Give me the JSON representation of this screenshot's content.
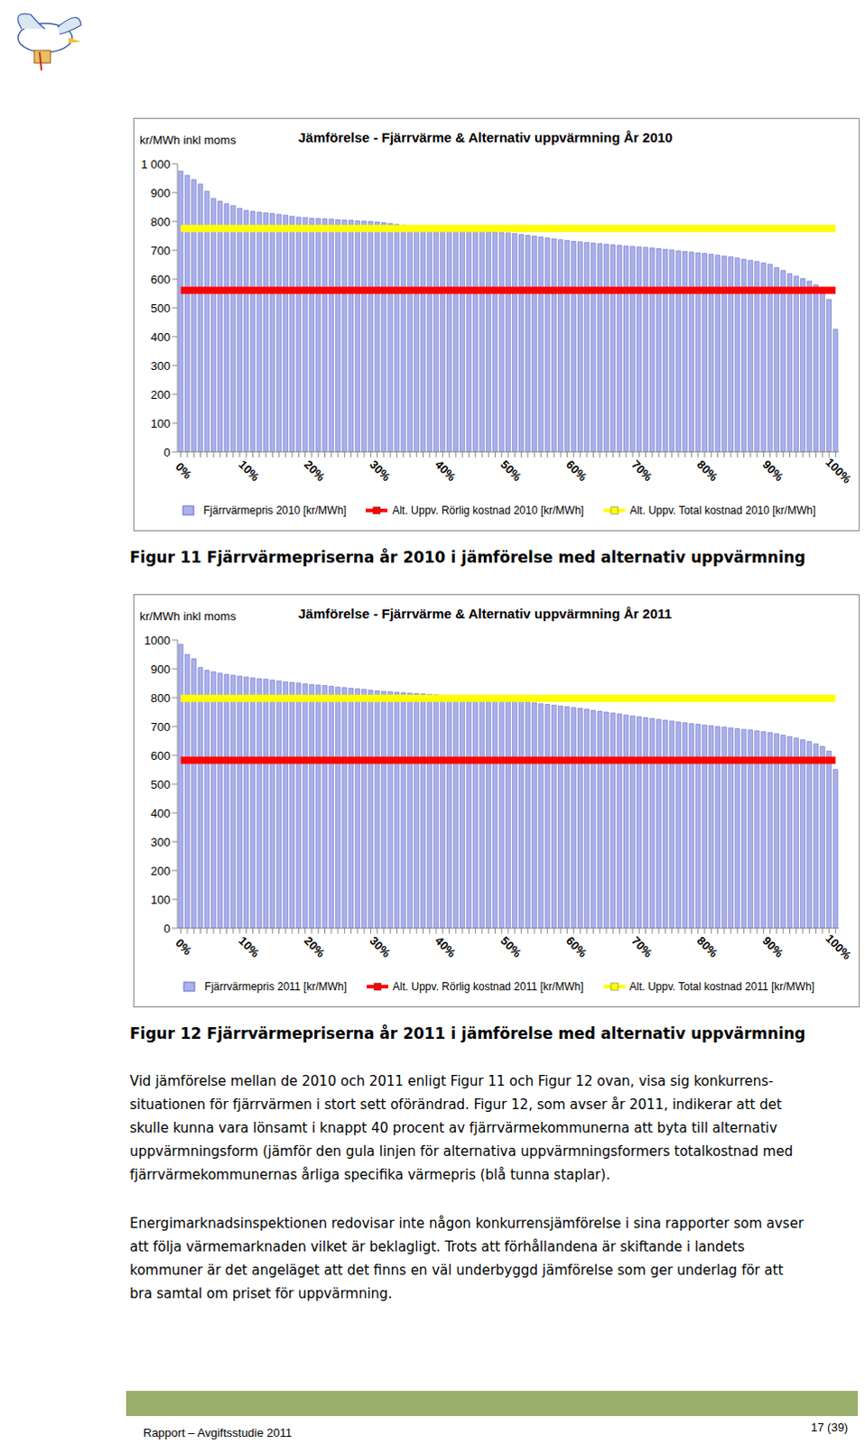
{
  "chart_data": [
    {
      "type": "bar",
      "title": "Jämförelse - Fjärrvärme & Alternativ uppvärmning År 2010",
      "ylabel": "kr/MWh inkl moms",
      "categories": [
        "0%",
        null,
        null,
        null,
        null,
        null,
        null,
        null,
        null,
        null,
        "10%",
        null,
        null,
        null,
        null,
        null,
        null,
        null,
        null,
        null,
        "20%",
        null,
        null,
        null,
        null,
        null,
        null,
        null,
        null,
        null,
        "30%",
        null,
        null,
        null,
        null,
        null,
        null,
        null,
        null,
        null,
        "40%",
        null,
        null,
        null,
        null,
        null,
        null,
        null,
        null,
        null,
        "50%",
        null,
        null,
        null,
        null,
        null,
        null,
        null,
        null,
        null,
        "60%",
        null,
        null,
        null,
        null,
        null,
        null,
        null,
        null,
        null,
        "70%",
        null,
        null,
        null,
        null,
        null,
        null,
        null,
        null,
        null,
        "80%",
        null,
        null,
        null,
        null,
        null,
        null,
        null,
        null,
        null,
        "90%",
        null,
        null,
        null,
        null,
        null,
        null,
        null,
        null,
        null,
        "100%"
      ],
      "series": [
        {
          "name": "Fjärrvärmepris 2010 [kr/MWh]",
          "type": "bar",
          "color": "#aab0ea",
          "values": [
            975,
            960,
            945,
            930,
            905,
            880,
            870,
            862,
            855,
            845,
            838,
            835,
            832,
            830,
            828,
            825,
            822,
            818,
            815,
            813,
            811,
            810,
            809,
            808,
            806,
            805,
            804,
            802,
            801,
            800,
            798,
            796,
            793,
            790,
            787,
            785,
            782,
            779,
            777,
            775,
            772,
            771,
            770,
            769,
            768,
            766,
            765,
            764,
            763,
            762,
            760,
            758,
            755,
            752,
            749,
            746,
            743,
            740,
            737,
            734,
            731,
            729,
            727,
            725,
            723,
            721,
            719,
            717,
            715,
            713,
            712,
            710,
            708,
            706,
            703,
            701,
            698,
            696,
            694,
            691,
            689,
            686,
            683,
            680,
            677,
            673,
            669,
            665,
            661,
            656,
            651,
            640,
            630,
            619,
            610,
            602,
            593,
            580,
            561,
            529,
            426
          ]
        },
        {
          "name": "Alt. Uppv. Rörlig kostnad 2010 [kr/MWh]",
          "type": "line",
          "color": "#ff0000",
          "values": [
            561,
            561,
            561,
            561,
            561,
            561,
            561,
            561,
            561,
            561,
            561,
            561,
            561,
            561,
            561,
            561,
            561,
            561,
            561,
            561,
            561,
            561,
            561,
            561,
            561,
            561,
            561,
            561,
            561,
            561,
            561,
            561,
            561,
            561,
            561,
            561,
            561,
            561,
            561,
            561,
            561,
            561,
            561,
            561,
            561,
            561,
            561,
            561,
            561,
            561,
            561,
            561,
            561,
            561,
            561,
            561,
            561,
            561,
            561,
            561,
            561,
            561,
            561,
            561,
            561,
            561,
            561,
            561,
            561,
            561,
            561,
            561,
            561,
            561,
            561,
            561,
            561,
            561,
            561,
            561,
            561,
            561,
            561,
            561,
            561,
            561,
            561,
            561,
            561,
            561,
            561,
            561,
            561,
            561,
            561,
            561,
            561,
            561,
            561,
            561,
            561
          ]
        },
        {
          "name": "Alt. Uppv. Total kostnad 2010 [kr/MWh]",
          "type": "line",
          "color": "#ffff00",
          "values": [
            776,
            776,
            776,
            776,
            776,
            776,
            776,
            776,
            776,
            776,
            776,
            776,
            776,
            776,
            776,
            776,
            776,
            776,
            776,
            776,
            776,
            776,
            776,
            776,
            776,
            776,
            776,
            776,
            776,
            776,
            776,
            776,
            776,
            776,
            776,
            776,
            776,
            776,
            776,
            776,
            776,
            776,
            776,
            776,
            776,
            776,
            776,
            776,
            776,
            776,
            776,
            776,
            776,
            776,
            776,
            776,
            776,
            776,
            776,
            776,
            776,
            776,
            776,
            776,
            776,
            776,
            776,
            776,
            776,
            776,
            776,
            776,
            776,
            776,
            776,
            776,
            776,
            776,
            776,
            776,
            776,
            776,
            776,
            776,
            776,
            776,
            776,
            776,
            776,
            776,
            776,
            776,
            776,
            776,
            776,
            776,
            776,
            776,
            776,
            776,
            776
          ]
        }
      ],
      "ylim": [
        0,
        1000
      ],
      "yticks": [
        0,
        100,
        200,
        300,
        400,
        500,
        600,
        700,
        800,
        900,
        {
          "value": 1000,
          "label": "1 000"
        }
      ],
      "grid": false,
      "legend": "bottom"
    },
    {
      "type": "bar",
      "title": "Jämförelse - Fjärrvärme & Alternativ uppvärmning År 2011",
      "ylabel": "kr/MWh inkl moms",
      "categories": [
        "0%",
        null,
        null,
        null,
        null,
        null,
        null,
        null,
        null,
        null,
        "10%",
        null,
        null,
        null,
        null,
        null,
        null,
        null,
        null,
        null,
        "20%",
        null,
        null,
        null,
        null,
        null,
        null,
        null,
        null,
        null,
        "30%",
        null,
        null,
        null,
        null,
        null,
        null,
        null,
        null,
        null,
        "40%",
        null,
        null,
        null,
        null,
        null,
        null,
        null,
        null,
        null,
        "50%",
        null,
        null,
        null,
        null,
        null,
        null,
        null,
        null,
        null,
        "60%",
        null,
        null,
        null,
        null,
        null,
        null,
        null,
        null,
        null,
        "70%",
        null,
        null,
        null,
        null,
        null,
        null,
        null,
        null,
        null,
        "80%",
        null,
        null,
        null,
        null,
        null,
        null,
        null,
        null,
        null,
        "90%",
        null,
        null,
        null,
        null,
        null,
        null,
        null,
        null,
        null,
        "100%"
      ],
      "series": [
        {
          "name": "Fjärrvärmepris 2011 [kr/MWh]",
          "type": "bar",
          "color": "#aab0ea",
          "values": [
            985,
            950,
            935,
            905,
            895,
            890,
            885,
            881,
            878,
            875,
            872,
            869,
            866,
            864,
            861,
            858,
            855,
            853,
            851,
            848,
            846,
            844,
            842,
            840,
            837,
            835,
            833,
            831,
            829,
            826,
            824,
            822,
            821,
            819,
            817,
            816,
            814,
            813,
            811,
            810,
            808,
            806,
            805,
            803,
            802,
            800,
            798,
            797,
            795,
            794,
            792,
            790,
            787,
            785,
            782,
            779,
            777,
            774,
            771,
            769,
            766,
            763,
            760,
            756,
            753,
            750,
            747,
            744,
            740,
            737,
            734,
            731,
            728,
            725,
            722,
            719,
            716,
            713,
            710,
            708,
            705,
            703,
            700,
            698,
            695,
            693,
            690,
            688,
            685,
            682,
            679,
            675,
            670,
            665,
            660,
            654,
            648,
            640,
            631,
            615,
            551
          ]
        },
        {
          "name": "Alt. Uppv. Rörlig kostnad 2011 [kr/MWh]",
          "type": "line",
          "color": "#ff0000",
          "values": [
            583,
            583,
            583,
            583,
            583,
            583,
            583,
            583,
            583,
            583,
            583,
            583,
            583,
            583,
            583,
            583,
            583,
            583,
            583,
            583,
            583,
            583,
            583,
            583,
            583,
            583,
            583,
            583,
            583,
            583,
            583,
            583,
            583,
            583,
            583,
            583,
            583,
            583,
            583,
            583,
            583,
            583,
            583,
            583,
            583,
            583,
            583,
            583,
            583,
            583,
            583,
            583,
            583,
            583,
            583,
            583,
            583,
            583,
            583,
            583,
            583,
            583,
            583,
            583,
            583,
            583,
            583,
            583,
            583,
            583,
            583,
            583,
            583,
            583,
            583,
            583,
            583,
            583,
            583,
            583,
            583,
            583,
            583,
            583,
            583,
            583,
            583,
            583,
            583,
            583,
            583,
            583,
            583,
            583,
            583,
            583,
            583,
            583,
            583,
            583,
            583
          ]
        },
        {
          "name": "Alt. Uppv. Total kostnad 2011 [kr/MWh]",
          "type": "line",
          "color": "#ffff00",
          "values": [
            798,
            798,
            798,
            798,
            798,
            798,
            798,
            798,
            798,
            798,
            798,
            798,
            798,
            798,
            798,
            798,
            798,
            798,
            798,
            798,
            798,
            798,
            798,
            798,
            798,
            798,
            798,
            798,
            798,
            798,
            798,
            798,
            798,
            798,
            798,
            798,
            798,
            798,
            798,
            798,
            798,
            798,
            798,
            798,
            798,
            798,
            798,
            798,
            798,
            798,
            798,
            798,
            798,
            798,
            798,
            798,
            798,
            798,
            798,
            798,
            798,
            798,
            798,
            798,
            798,
            798,
            798,
            798,
            798,
            798,
            798,
            798,
            798,
            798,
            798,
            798,
            798,
            798,
            798,
            798,
            798,
            798,
            798,
            798,
            798,
            798,
            798,
            798,
            798,
            798,
            798,
            798,
            798,
            798,
            798,
            798,
            798,
            798,
            798,
            798,
            798
          ]
        }
      ],
      "ylim": [
        0,
        1000
      ],
      "yticks": [
        0,
        100,
        200,
        300,
        400,
        500,
        600,
        700,
        800,
        900,
        1000
      ],
      "grid": false,
      "legend": "bottom"
    }
  ],
  "captions": [
    "Figur 11 Fjärrvärmepriserna år 2010 i jämförelse med alternativ uppvärmning",
    "Figur 12 Fjärrvärmepriserna år 2011 i jämförelse med alternativ uppvärmning"
  ],
  "paragraphs": [
    [
      "Vid jämförelse mellan de 2010 och 2011 enligt Figur 11 och Figur 12 ovan, visa sig konkurrens-",
      "situationen för fjärrvärmen i stort sett oförändrad. Figur 12, som avser år 2011, indikerar att det",
      "skulle kunna vara lönsamt i knappt 40 procent av fjärrvärmekommunerna att byta till alternativ",
      "uppvärmningsform (jämför den gula linjen för alternativa uppvärmningsformers totalkostnad med",
      "fjärrvärmekommunernas årliga specifika värmepris (blå tunna staplar)."
    ],
    [
      "Energimarknadsinspektionen redovisar inte någon konkurrensjämförelse i sina rapporter som avser",
      "att följa värmemarknaden vilket är beklagligt. Trots att förhållandena är skiftande i landets",
      "kommuner är det angeläget att det finns en väl underbyggd jämförelse som ger underlag för att",
      "bra samtal om priset för uppvärmning."
    ]
  ],
  "footer": {
    "left": "Rapport – Avgiftsstudie 2011",
    "page": "17 (39)"
  }
}
